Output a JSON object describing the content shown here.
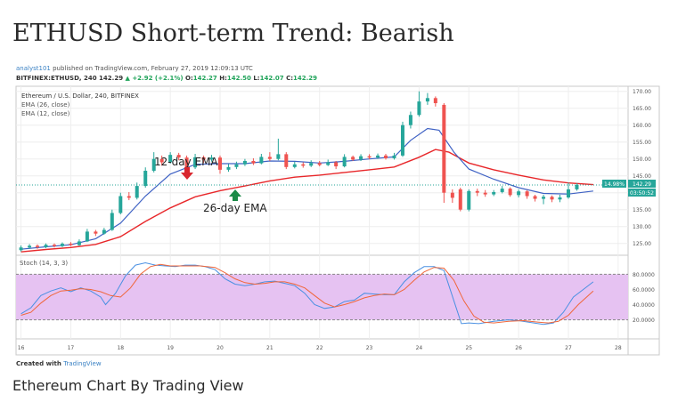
{
  "headline": "ETHUSD Short-term Trend: Bearish",
  "caption": "Ethereum Chart By Trading View",
  "meta": {
    "user": "analyst101",
    "published": "published on TradingView.com, February 27, 2019 12:09:13 UTC",
    "symbol": "BITFINEX:ETHUSD, 240",
    "last": "142.29",
    "change": "▲ +2.92 (+2.1%)",
    "o_label": "O:",
    "o": "142.27",
    "h_label": "H:",
    "h": "142.50",
    "l_label": "L:",
    "l": "142.07",
    "c_label": "C:",
    "c": "142.29",
    "created_with": "Created with",
    "tradingview": "TradingView"
  },
  "chart_data": {
    "type": "candlestick",
    "title": "Ethereum / U.S. Dollar, 240, BITFINEX",
    "legend": [
      "EMA (26, close)",
      "EMA (12, close)"
    ],
    "x_ticks": [
      "16",
      "17",
      "18",
      "19",
      "20",
      "21",
      "22",
      "23",
      "24",
      "25",
      "26",
      "27",
      "28"
    ],
    "x_range": [
      15.9,
      28.2
    ],
    "y_ticks": [
      "170.00",
      "165.00",
      "160.00",
      "155.00",
      "150.00",
      "145.00",
      "140.00",
      "135.00",
      "130.00",
      "125.00"
    ],
    "y_range": [
      121.5,
      171.5
    ],
    "annotations": {
      "ema12": "12-day EMA",
      "ema26": "26-day EMA",
      "last_price": "142.29",
      "last_pct": "14.98%",
      "countdown": "03:50:52"
    },
    "colors": {
      "up": "#26a69a",
      "down": "#ef5350",
      "ema12": "#3f62c4",
      "ema26": "#e8272a",
      "stoch_fill": "#e6c2f2"
    },
    "candles": [
      {
        "t": 16.0,
        "o": 123.0,
        "c": 123.8,
        "h": 124.4,
        "l": 122.6
      },
      {
        "t": 16.17,
        "o": 123.8,
        "c": 124.3,
        "h": 124.8,
        "l": 123.4
      },
      {
        "t": 16.33,
        "o": 124.3,
        "c": 123.9,
        "h": 124.7,
        "l": 123.4
      },
      {
        "t": 16.5,
        "o": 123.9,
        "c": 124.6,
        "h": 125.0,
        "l": 123.6
      },
      {
        "t": 16.67,
        "o": 124.6,
        "c": 124.2,
        "h": 125.0,
        "l": 123.8
      },
      {
        "t": 16.83,
        "o": 124.2,
        "c": 124.9,
        "h": 125.3,
        "l": 123.9
      },
      {
        "t": 17.0,
        "o": 124.9,
        "c": 124.5,
        "h": 125.4,
        "l": 124.2
      },
      {
        "t": 17.17,
        "o": 124.5,
        "c": 125.6,
        "h": 126.2,
        "l": 124.3
      },
      {
        "t": 17.33,
        "o": 125.6,
        "c": 128.5,
        "h": 129.3,
        "l": 125.4
      },
      {
        "t": 17.5,
        "o": 128.5,
        "c": 127.9,
        "h": 129.0,
        "l": 127.2
      },
      {
        "t": 17.67,
        "o": 127.9,
        "c": 129.0,
        "h": 129.6,
        "l": 127.6
      },
      {
        "t": 17.83,
        "o": 129.0,
        "c": 134.0,
        "h": 135.0,
        "l": 128.7
      },
      {
        "t": 18.0,
        "o": 134.0,
        "c": 139.0,
        "h": 140.0,
        "l": 133.6
      },
      {
        "t": 18.17,
        "o": 139.0,
        "c": 138.5,
        "h": 140.2,
        "l": 137.8
      },
      {
        "t": 18.33,
        "o": 138.5,
        "c": 142.0,
        "h": 143.0,
        "l": 138.0
      },
      {
        "t": 18.5,
        "o": 142.0,
        "c": 146.5,
        "h": 147.5,
        "l": 141.5
      },
      {
        "t": 18.67,
        "o": 146.5,
        "c": 150.0,
        "h": 152.0,
        "l": 146.0
      },
      {
        "t": 18.83,
        "o": 150.0,
        "c": 149.0,
        "h": 151.0,
        "l": 148.0
      },
      {
        "t": 19.0,
        "o": 149.0,
        "c": 151.2,
        "h": 152.0,
        "l": 148.6
      },
      {
        "t": 19.17,
        "o": 151.2,
        "c": 150.4,
        "h": 151.8,
        "l": 149.6
      },
      {
        "t": 19.33,
        "o": 150.4,
        "c": 147.5,
        "h": 151.0,
        "l": 146.5
      },
      {
        "t": 19.5,
        "o": 147.5,
        "c": 150.5,
        "h": 151.5,
        "l": 147.0
      },
      {
        "t": 19.67,
        "o": 150.5,
        "c": 149.8,
        "h": 151.0,
        "l": 148.8
      },
      {
        "t": 19.83,
        "o": 149.8,
        "c": 150.4,
        "h": 151.2,
        "l": 149.2
      },
      {
        "t": 20.0,
        "o": 150.4,
        "c": 146.8,
        "h": 151.0,
        "l": 145.6
      },
      {
        "t": 20.17,
        "o": 146.8,
        "c": 147.6,
        "h": 148.5,
        "l": 146.2
      },
      {
        "t": 20.33,
        "o": 147.6,
        "c": 148.4,
        "h": 149.2,
        "l": 147.0
      },
      {
        "t": 20.5,
        "o": 148.4,
        "c": 149.4,
        "h": 150.0,
        "l": 147.9
      },
      {
        "t": 20.67,
        "o": 149.4,
        "c": 148.7,
        "h": 150.2,
        "l": 148.2
      },
      {
        "t": 20.83,
        "o": 148.7,
        "c": 150.6,
        "h": 151.5,
        "l": 148.4
      },
      {
        "t": 21.0,
        "o": 150.6,
        "c": 150.0,
        "h": 152.0,
        "l": 149.4
      },
      {
        "t": 21.17,
        "o": 150.0,
        "c": 151.4,
        "h": 156.0,
        "l": 149.6
      },
      {
        "t": 21.33,
        "o": 151.4,
        "c": 147.6,
        "h": 152.0,
        "l": 147.0
      },
      {
        "t": 21.5,
        "o": 147.6,
        "c": 148.4,
        "h": 149.2,
        "l": 147.2
      },
      {
        "t": 21.67,
        "o": 148.4,
        "c": 148.0,
        "h": 149.0,
        "l": 147.4
      },
      {
        "t": 21.83,
        "o": 148.0,
        "c": 148.8,
        "h": 149.6,
        "l": 147.6
      },
      {
        "t": 22.0,
        "o": 148.8,
        "c": 148.2,
        "h": 149.4,
        "l": 147.8
      },
      {
        "t": 22.17,
        "o": 148.2,
        "c": 149.0,
        "h": 149.8,
        "l": 147.9
      },
      {
        "t": 22.33,
        "o": 149.0,
        "c": 147.8,
        "h": 149.4,
        "l": 147.0
      },
      {
        "t": 22.5,
        "o": 147.8,
        "c": 150.6,
        "h": 151.4,
        "l": 147.5
      },
      {
        "t": 22.67,
        "o": 150.6,
        "c": 149.8,
        "h": 151.0,
        "l": 149.4
      },
      {
        "t": 22.83,
        "o": 149.8,
        "c": 150.8,
        "h": 151.4,
        "l": 149.4
      },
      {
        "t": 23.0,
        "o": 150.8,
        "c": 150.4,
        "h": 151.4,
        "l": 149.9
      },
      {
        "t": 23.17,
        "o": 150.4,
        "c": 151.0,
        "h": 151.6,
        "l": 150.0
      },
      {
        "t": 23.33,
        "o": 151.0,
        "c": 150.2,
        "h": 151.5,
        "l": 149.8
      },
      {
        "t": 23.5,
        "o": 150.2,
        "c": 151.0,
        "h": 151.8,
        "l": 149.8
      },
      {
        "t": 23.67,
        "o": 151.0,
        "c": 160.0,
        "h": 161.0,
        "l": 150.6
      },
      {
        "t": 23.83,
        "o": 160.0,
        "c": 163.0,
        "h": 164.0,
        "l": 159.0
      },
      {
        "t": 24.0,
        "o": 163.0,
        "c": 167.0,
        "h": 170.0,
        "l": 162.5
      },
      {
        "t": 24.17,
        "o": 167.0,
        "c": 168.0,
        "h": 169.5,
        "l": 166.0
      },
      {
        "t": 24.33,
        "o": 168.0,
        "c": 166.5,
        "h": 168.5,
        "l": 165.5
      },
      {
        "t": 24.5,
        "o": 166.0,
        "c": 140.0,
        "h": 166.5,
        "l": 137.0
      },
      {
        "t": 24.67,
        "o": 140.0,
        "c": 138.5,
        "h": 141.0,
        "l": 137.0
      },
      {
        "t": 24.83,
        "o": 141.0,
        "c": 135.0,
        "h": 141.5,
        "l": 134.5
      },
      {
        "t": 25.0,
        "o": 135.0,
        "c": 140.5,
        "h": 141.0,
        "l": 134.5
      },
      {
        "t": 25.17,
        "o": 140.5,
        "c": 140.0,
        "h": 141.2,
        "l": 139.0
      },
      {
        "t": 25.33,
        "o": 140.0,
        "c": 139.5,
        "h": 140.8,
        "l": 138.8
      },
      {
        "t": 25.5,
        "o": 139.5,
        "c": 140.2,
        "h": 140.8,
        "l": 139.0
      },
      {
        "t": 25.67,
        "o": 140.2,
        "c": 141.2,
        "h": 142.0,
        "l": 139.8
      },
      {
        "t": 25.83,
        "o": 141.2,
        "c": 139.3,
        "h": 141.6,
        "l": 138.8
      },
      {
        "t": 26.0,
        "o": 139.3,
        "c": 140.4,
        "h": 141.0,
        "l": 138.6
      },
      {
        "t": 26.17,
        "o": 140.4,
        "c": 139.0,
        "h": 140.8,
        "l": 138.2
      },
      {
        "t": 26.33,
        "o": 139.0,
        "c": 138.2,
        "h": 139.4,
        "l": 137.4
      },
      {
        "t": 26.5,
        "o": 138.2,
        "c": 138.8,
        "h": 139.4,
        "l": 136.6
      },
      {
        "t": 26.67,
        "o": 138.8,
        "c": 138.0,
        "h": 139.2,
        "l": 137.2
      },
      {
        "t": 26.83,
        "o": 138.0,
        "c": 138.6,
        "h": 139.4,
        "l": 137.2
      },
      {
        "t": 27.0,
        "o": 138.6,
        "c": 141.0,
        "h": 143.0,
        "l": 138.2
      },
      {
        "t": 27.17,
        "o": 141.0,
        "c": 142.3,
        "h": 142.8,
        "l": 140.6
      }
    ],
    "ema12": [
      [
        16.0,
        123.3
      ],
      [
        16.5,
        124.0
      ],
      [
        17.0,
        124.6
      ],
      [
        17.5,
        126.4
      ],
      [
        18.0,
        131.0
      ],
      [
        18.5,
        139.0
      ],
      [
        19.0,
        145.5
      ],
      [
        19.5,
        148.4
      ],
      [
        20.0,
        148.6
      ],
      [
        20.5,
        148.6
      ],
      [
        21.0,
        149.4
      ],
      [
        21.5,
        149.3
      ],
      [
        22.0,
        148.8
      ],
      [
        22.5,
        149.3
      ],
      [
        23.0,
        150.0
      ],
      [
        23.5,
        150.6
      ],
      [
        23.83,
        155.5
      ],
      [
        24.17,
        159.0
      ],
      [
        24.4,
        158.5
      ],
      [
        24.7,
        152.0
      ],
      [
        25.0,
        147.0
      ],
      [
        25.5,
        144.0
      ],
      [
        26.0,
        141.5
      ],
      [
        26.5,
        139.8
      ],
      [
        27.0,
        139.6
      ],
      [
        27.5,
        140.5
      ]
    ],
    "ema26": [
      [
        16.0,
        122.5
      ],
      [
        16.5,
        123.2
      ],
      [
        17.0,
        123.8
      ],
      [
        17.5,
        124.7
      ],
      [
        18.0,
        127.0
      ],
      [
        18.5,
        131.5
      ],
      [
        19.0,
        135.5
      ],
      [
        19.5,
        138.8
      ],
      [
        20.0,
        140.6
      ],
      [
        20.5,
        142.0
      ],
      [
        21.0,
        143.5
      ],
      [
        21.5,
        144.6
      ],
      [
        22.0,
        145.2
      ],
      [
        22.5,
        146.0
      ],
      [
        23.0,
        146.8
      ],
      [
        23.5,
        147.6
      ],
      [
        24.0,
        150.5
      ],
      [
        24.33,
        152.8
      ],
      [
        24.6,
        152.0
      ],
      [
        25.0,
        148.8
      ],
      [
        25.5,
        146.8
      ],
      [
        26.0,
        145.2
      ],
      [
        26.5,
        143.8
      ],
      [
        27.0,
        142.9
      ],
      [
        27.5,
        142.4
      ]
    ],
    "stoch": {
      "label": "Stoch (14, 3, 3)",
      "y_ticks": [
        "80.0000",
        "60.0000",
        "40.0000",
        "20.0000"
      ],
      "y_range": [
        -5,
        105
      ],
      "bands": [
        20,
        80
      ],
      "k": [
        [
          16.0,
          28
        ],
        [
          16.2,
          36
        ],
        [
          16.4,
          52
        ],
        [
          16.6,
          58
        ],
        [
          16.8,
          62
        ],
        [
          17.0,
          57
        ],
        [
          17.2,
          62
        ],
        [
          17.4,
          58
        ],
        [
          17.6,
          50
        ],
        [
          17.7,
          40
        ],
        [
          17.9,
          55
        ],
        [
          18.1,
          78
        ],
        [
          18.3,
          92
        ],
        [
          18.5,
          95
        ],
        [
          18.7,
          92
        ],
        [
          18.9,
          91
        ],
        [
          19.1,
          90
        ],
        [
          19.3,
          92
        ],
        [
          19.5,
          92
        ],
        [
          19.7,
          90
        ],
        [
          19.9,
          86
        ],
        [
          20.1,
          74
        ],
        [
          20.3,
          67
        ],
        [
          20.5,
          65
        ],
        [
          20.7,
          67
        ],
        [
          20.9,
          70
        ],
        [
          21.1,
          71
        ],
        [
          21.3,
          68
        ],
        [
          21.5,
          65
        ],
        [
          21.7,
          55
        ],
        [
          21.9,
          40
        ],
        [
          22.1,
          35
        ],
        [
          22.3,
          37
        ],
        [
          22.5,
          44
        ],
        [
          22.7,
          46
        ],
        [
          22.9,
          55
        ],
        [
          23.1,
          54
        ],
        [
          23.3,
          53
        ],
        [
          23.5,
          53
        ],
        [
          23.7,
          70
        ],
        [
          23.9,
          82
        ],
        [
          24.1,
          90
        ],
        [
          24.3,
          90
        ],
        [
          24.5,
          85
        ],
        [
          24.7,
          45
        ],
        [
          24.85,
          15
        ],
        [
          25.0,
          16
        ],
        [
          25.2,
          15
        ],
        [
          25.5,
          18
        ],
        [
          25.8,
          20
        ],
        [
          26.0,
          19
        ],
        [
          26.2,
          17
        ],
        [
          26.5,
          14
        ],
        [
          26.7,
          16
        ],
        [
          26.9,
          30
        ],
        [
          27.1,
          50
        ],
        [
          27.3,
          60
        ],
        [
          27.5,
          70
        ]
      ],
      "d": [
        [
          16.0,
          26
        ],
        [
          16.2,
          30
        ],
        [
          16.4,
          42
        ],
        [
          16.6,
          52
        ],
        [
          16.8,
          58
        ],
        [
          17.0,
          59
        ],
        [
          17.2,
          61
        ],
        [
          17.4,
          60
        ],
        [
          17.6,
          57
        ],
        [
          17.8,
          52
        ],
        [
          18.0,
          50
        ],
        [
          18.2,
          62
        ],
        [
          18.4,
          80
        ],
        [
          18.6,
          90
        ],
        [
          18.8,
          93
        ],
        [
          19.0,
          91
        ],
        [
          19.3,
          91
        ],
        [
          19.6,
          91
        ],
        [
          19.9,
          89
        ],
        [
          20.1,
          82
        ],
        [
          20.3,
          74
        ],
        [
          20.5,
          69
        ],
        [
          20.7,
          67
        ],
        [
          20.9,
          68
        ],
        [
          21.1,
          70
        ],
        [
          21.3,
          70
        ],
        [
          21.5,
          67
        ],
        [
          21.7,
          62
        ],
        [
          21.9,
          52
        ],
        [
          22.1,
          42
        ],
        [
          22.3,
          37
        ],
        [
          22.5,
          40
        ],
        [
          22.7,
          44
        ],
        [
          22.9,
          49
        ],
        [
          23.1,
          52
        ],
        [
          23.3,
          54
        ],
        [
          23.5,
          53
        ],
        [
          23.7,
          60
        ],
        [
          23.9,
          72
        ],
        [
          24.1,
          83
        ],
        [
          24.3,
          89
        ],
        [
          24.5,
          88
        ],
        [
          24.7,
          72
        ],
        [
          24.9,
          45
        ],
        [
          25.1,
          25
        ],
        [
          25.3,
          17
        ],
        [
          25.5,
          16
        ],
        [
          25.8,
          18
        ],
        [
          26.1,
          19
        ],
        [
          26.4,
          17
        ],
        [
          26.6,
          16
        ],
        [
          26.8,
          18
        ],
        [
          27.0,
          26
        ],
        [
          27.2,
          40
        ],
        [
          27.5,
          58
        ]
      ]
    }
  }
}
